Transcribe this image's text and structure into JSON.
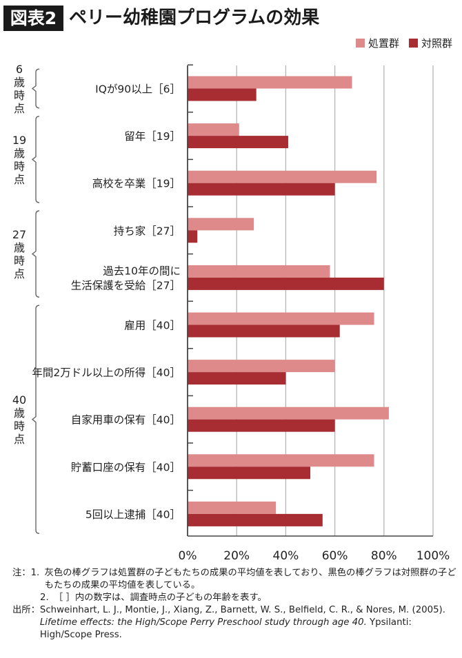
{
  "header": {
    "badge": "図表2",
    "title": "ペリー幼稚園プログラムの効果"
  },
  "colors": {
    "treatment": "#de8a8a",
    "control": "#a82d33"
  },
  "chart_data": {
    "type": "bar",
    "orientation": "horizontal",
    "title": "ペリー幼稚園プログラムの効果",
    "legend_position": "top-right",
    "grid": true,
    "xlim": [
      0,
      100
    ],
    "xticks": [
      "0%",
      "20%",
      "40%",
      "60%",
      "80%",
      "100%"
    ],
    "categories": [
      [
        "IQが90以上［6］"
      ],
      [
        "留年［19］"
      ],
      [
        "高校を卒業［19］"
      ],
      [
        "持ち家［27］"
      ],
      [
        "過去10年の間に",
        "生活保護を受給［27］"
      ],
      [
        "雇用［40］"
      ],
      [
        "年間2万ドル以上の所得［40］"
      ],
      [
        "自家用車の保有［40］"
      ],
      [
        "貯蓄口座の保有［40］"
      ],
      [
        "5回以上逮捕［40］"
      ]
    ],
    "groups": [
      {
        "label": [
          "6",
          "歳",
          "時",
          "点"
        ],
        "start": 0,
        "end": 0
      },
      {
        "label": [
          "19",
          "歳",
          "時",
          "点"
        ],
        "start": 1,
        "end": 2
      },
      {
        "label": [
          "27",
          "歳",
          "時",
          "点"
        ],
        "start": 3,
        "end": 4
      },
      {
        "label": [
          "40",
          "歳",
          "時",
          "点"
        ],
        "start": 5,
        "end": 9
      }
    ],
    "series": [
      {
        "name": "処置群",
        "values": [
          67,
          21,
          77,
          27,
          58,
          76,
          60,
          82,
          76,
          36
        ]
      },
      {
        "name": "対照群",
        "values": [
          28,
          41,
          60,
          4,
          80,
          62,
          40,
          60,
          50,
          55
        ]
      }
    ]
  },
  "notes": {
    "note_head": "注：",
    "note1_num": "1.",
    "note1": "灰色の棒グラフは処置群の子どもたちの成果の平均値を表しており、黒色の棒グラフは対照群の子どもたちの成果の平均値を表している。",
    "note2_num": "2.",
    "note2": "［ ］内の数字は、調査時点の子どもの年齢を表す。",
    "source_head": "出所：",
    "source_a": "Schweinhart, L. J., Montie, J., Xiang, Z., Barnett, W. S., Belfield, C. R., & Nores, M. (2005). ",
    "source_italic": "Lifetime effects: the High/Scope Perry Preschool study through age 40.",
    "source_b": " Ypsilanti: High/Scope Press."
  }
}
